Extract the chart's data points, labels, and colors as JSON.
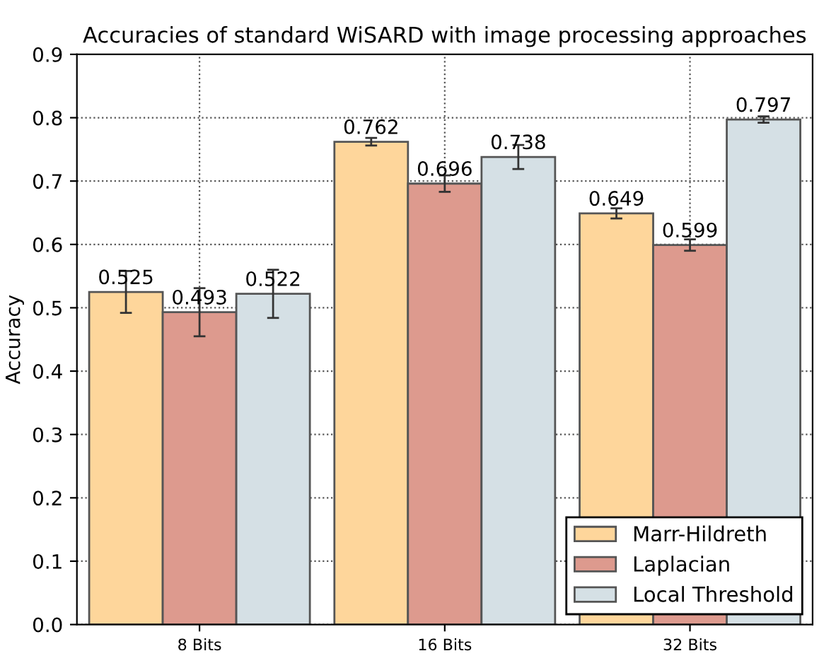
{
  "chart_data": {
    "type": "bar",
    "title": "Accuracies of standard WiSARD with image processing approaches",
    "ylabel": "Accuracy",
    "categories": [
      "8 Bits",
      "16 Bits",
      "32 Bits"
    ],
    "series": [
      {
        "name": "Marr-Hildreth",
        "color": "#fed69b",
        "values": [
          0.525,
          0.762,
          0.649
        ],
        "errors": [
          0.033,
          0.006,
          0.008
        ]
      },
      {
        "name": "Laplacian",
        "color": "#dd9a8e",
        "values": [
          0.493,
          0.696,
          0.599
        ],
        "errors": [
          0.038,
          0.013,
          0.009
        ]
      },
      {
        "name": "Local Threshold",
        "color": "#d5e0e5",
        "values": [
          0.522,
          0.738,
          0.797
        ],
        "errors": [
          0.038,
          0.019,
          0.005
        ]
      }
    ],
    "ylim": [
      0,
      0.9
    ],
    "yticks": [
      {
        "value": 0,
        "label": "0.0"
      },
      0.1,
      0.2,
      0.3,
      0.4,
      0.5,
      0.6,
      0.7,
      0.8,
      0.9
    ],
    "data_labels": true,
    "grid": true,
    "legend": "bottom right"
  }
}
